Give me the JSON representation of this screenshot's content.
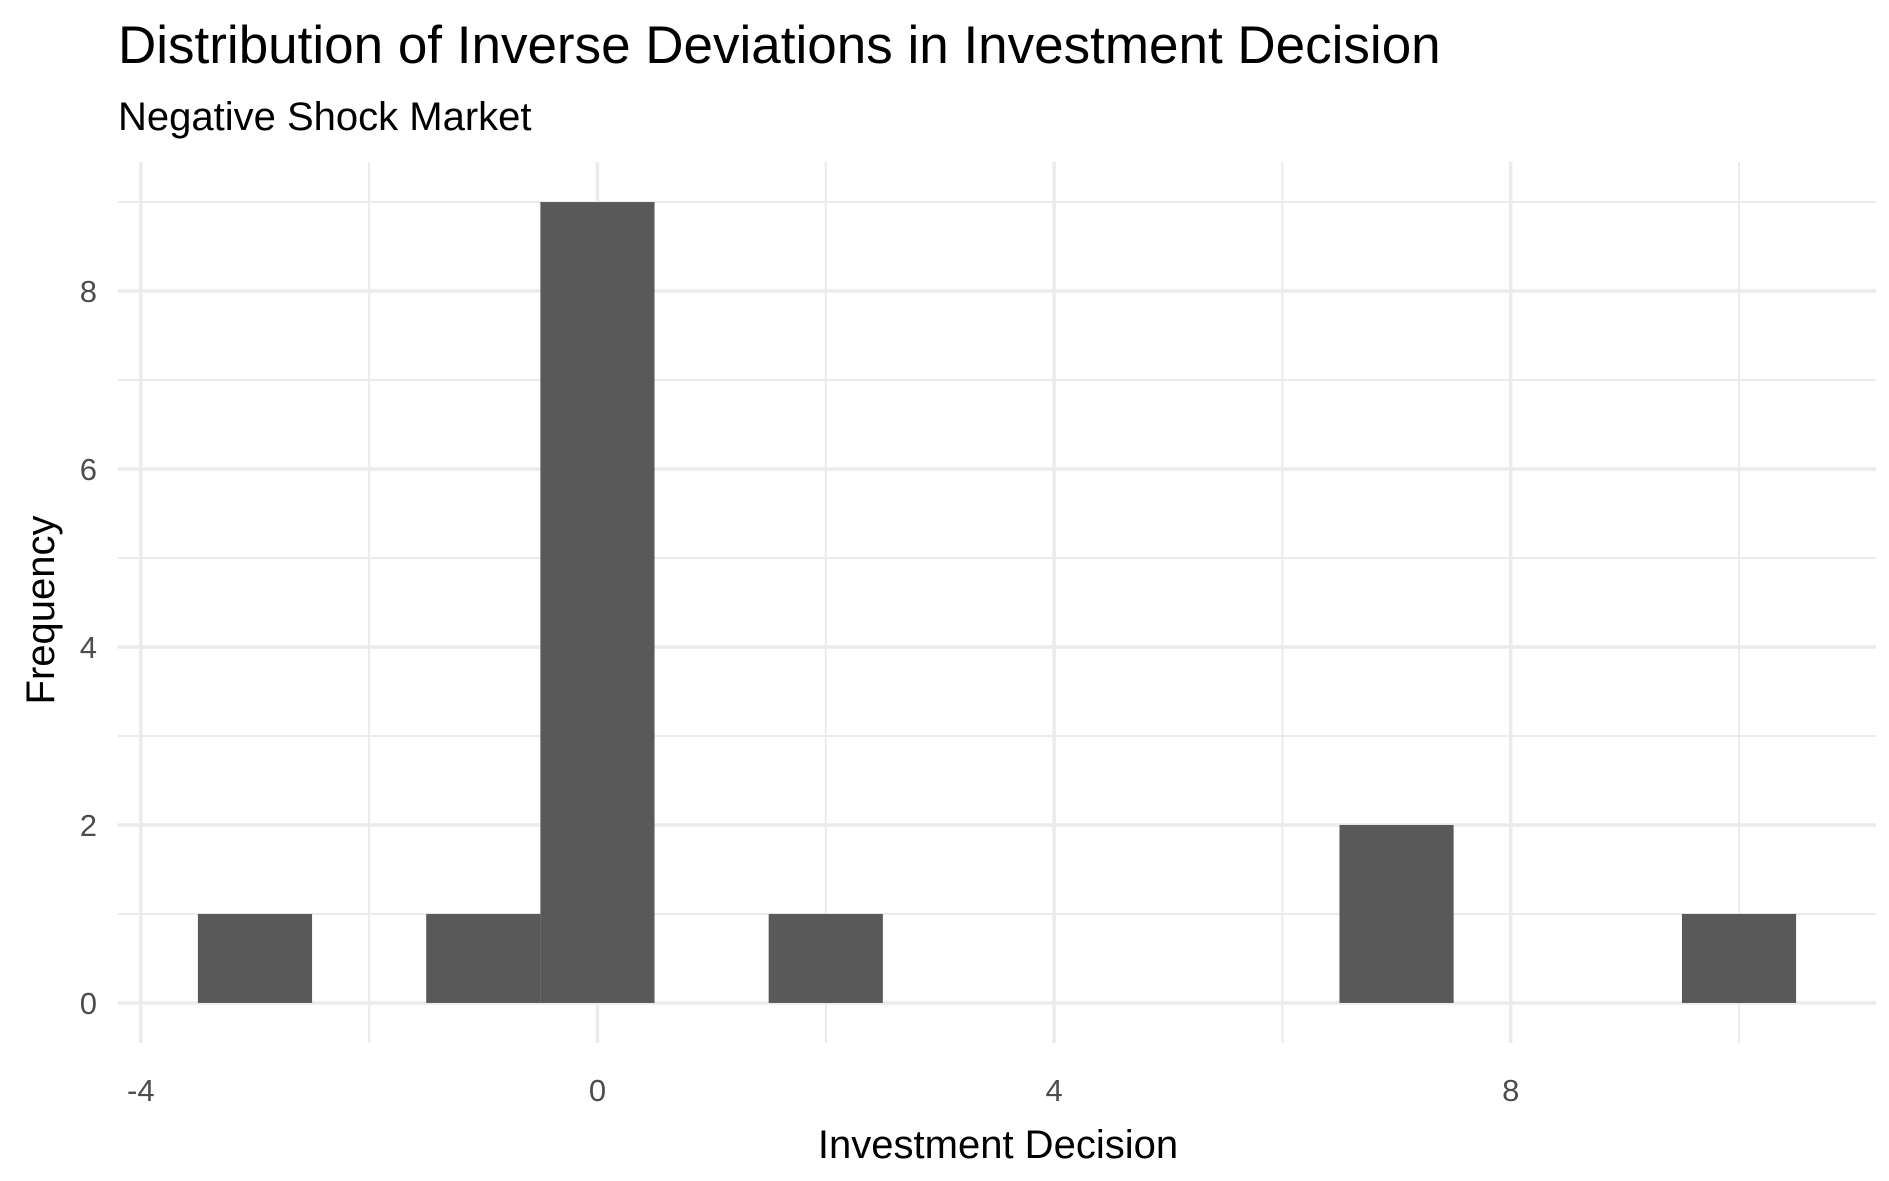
{
  "chart_data": {
    "type": "bar",
    "title": "Distribution of Inverse Deviations in Investment Decision",
    "subtitle": "Negative Shock Market",
    "xlabel": "Investment Decision",
    "ylabel": "Frequency",
    "xlim": [
      -4.2,
      11.2
    ],
    "ylim": [
      -0.45,
      9.45
    ],
    "x_ticks": [
      -4,
      0,
      4,
      8
    ],
    "x_tick_labels": [
      "-4",
      "0",
      "4",
      "8"
    ],
    "x_minor_ticks": [
      -2,
      2,
      6,
      10
    ],
    "y_ticks": [
      0,
      2,
      4,
      6,
      8
    ],
    "y_tick_labels": [
      "0",
      "2",
      "4",
      "6",
      "8"
    ],
    "y_minor_ticks": [
      1,
      3,
      5,
      7,
      9
    ],
    "binwidth": 1,
    "bins": [
      {
        "center": -3,
        "count": 1
      },
      {
        "center": -1,
        "count": 1
      },
      {
        "center": 0,
        "count": 9
      },
      {
        "center": 2,
        "count": 1
      },
      {
        "center": 7,
        "count": 2
      },
      {
        "center": 10,
        "count": 1
      }
    ],
    "bar_color": "#595959",
    "grid": true,
    "legend": "none"
  }
}
